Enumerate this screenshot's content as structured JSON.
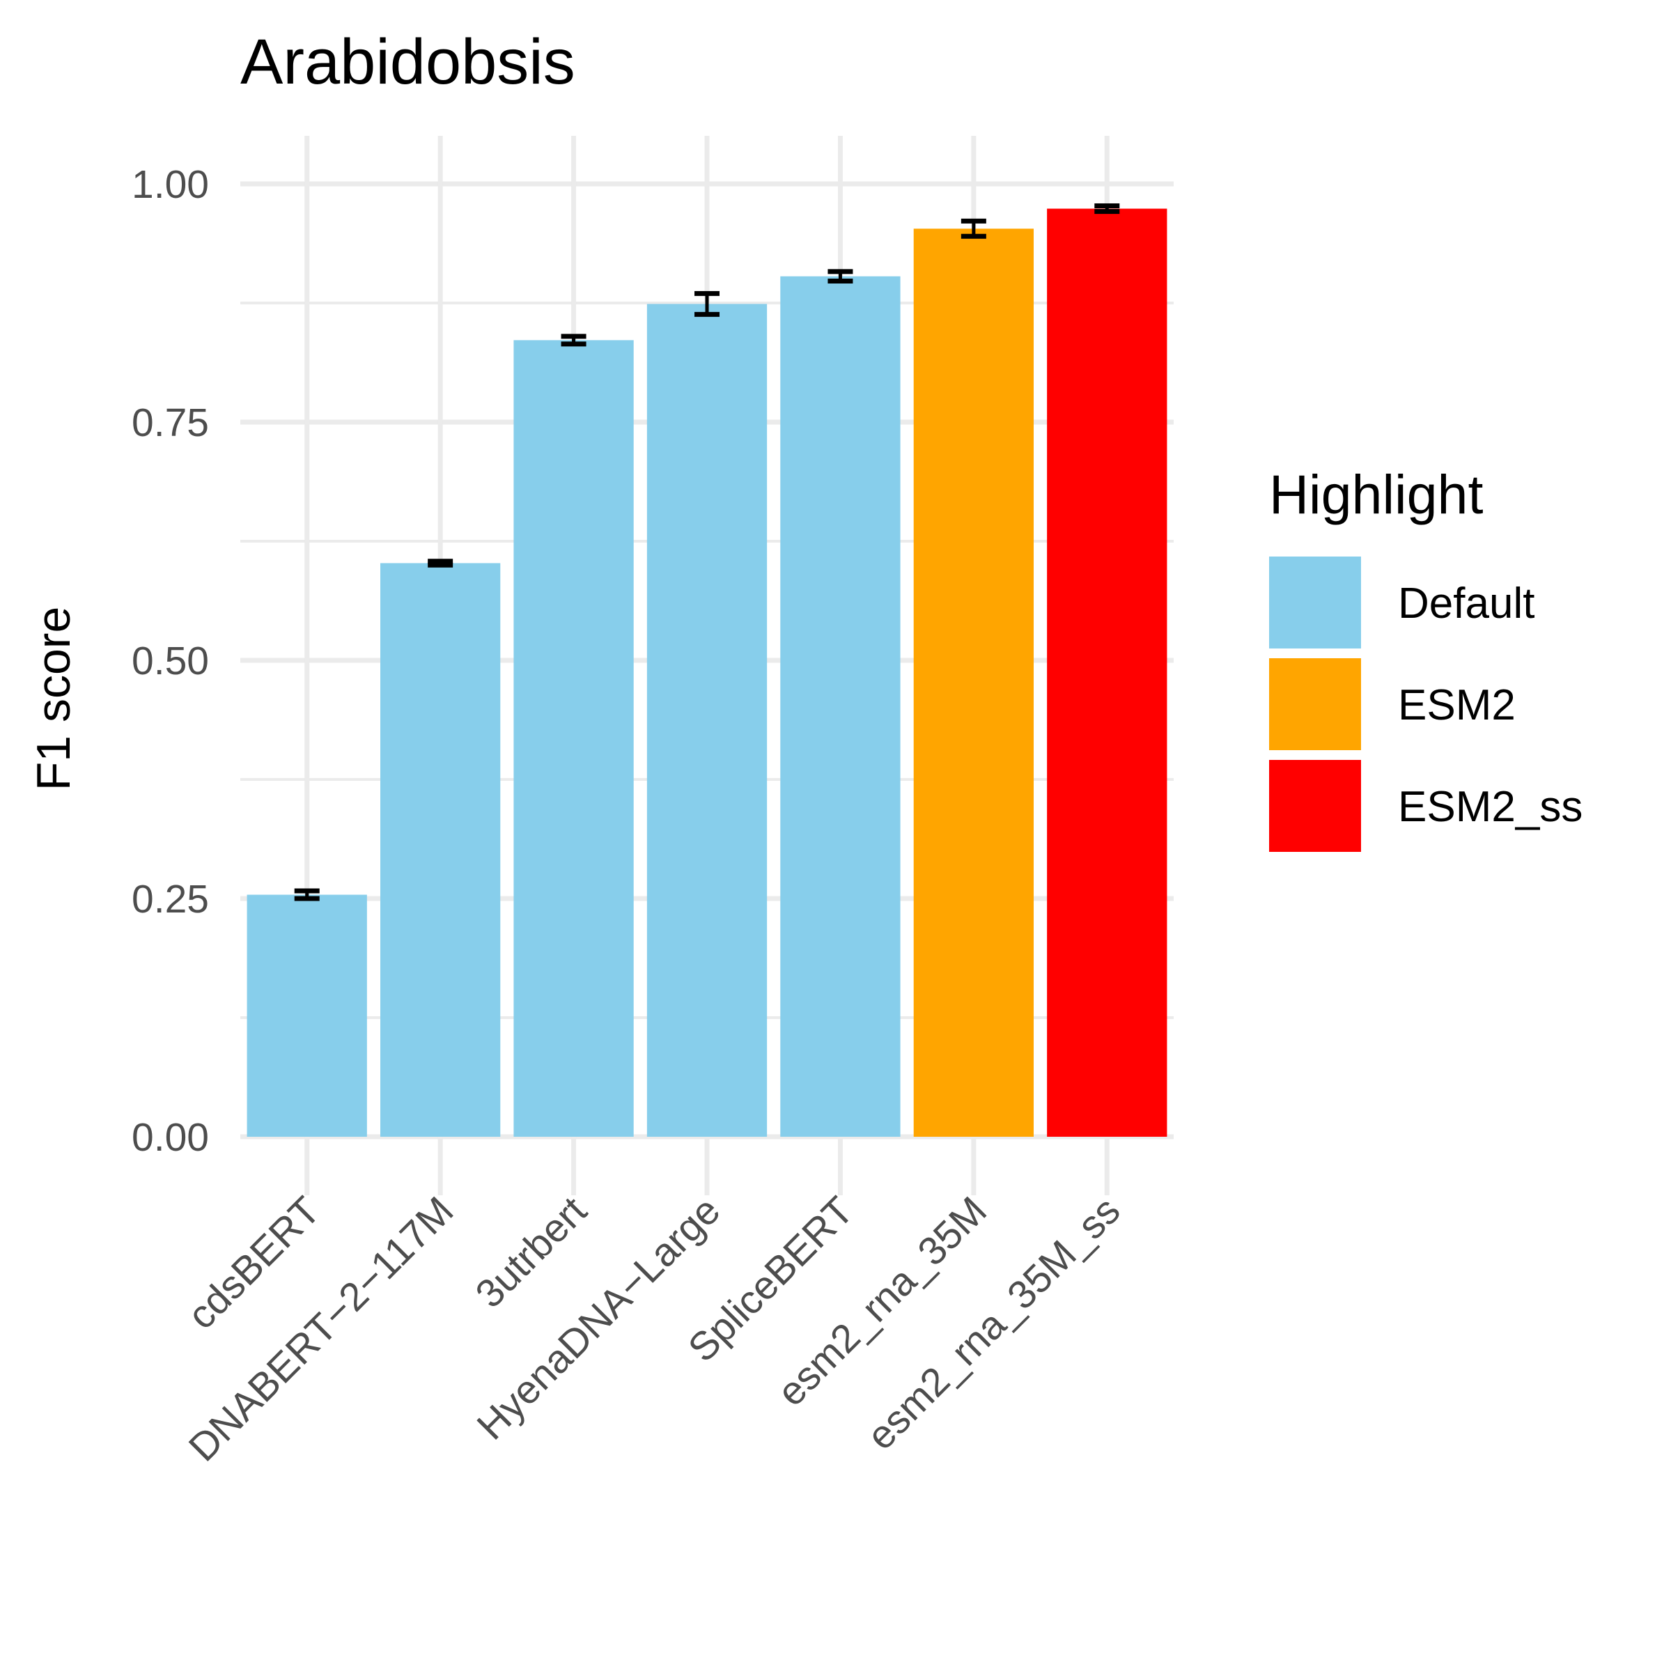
{
  "chart_data": {
    "type": "bar",
    "title": "Arabidobsis",
    "xlabel": "",
    "ylabel": "F1 score",
    "ylim": [
      0,
      1.05
    ],
    "yticks": [
      "0.00",
      "0.25",
      "0.50",
      "0.75",
      "1.00"
    ],
    "grid": true,
    "categories": [
      "cdsBERT",
      "DNABERT−2−117M",
      "3utrbert",
      "HyenaDNA−Large",
      "SpliceBERT",
      "esm2_rna_35M",
      "esm2_rna_35M_ss"
    ],
    "values": [
      0.254,
      0.602,
      0.836,
      0.874,
      0.903,
      0.953,
      0.974
    ],
    "errors": [
      0.004,
      0.002,
      0.004,
      0.011,
      0.005,
      0.008,
      0.003
    ],
    "highlight": [
      "Default",
      "Default",
      "Default",
      "Default",
      "Default",
      "ESM2",
      "ESM2_ss"
    ],
    "legend": {
      "title": "Highlight",
      "position": "right",
      "items": [
        {
          "label": "Default",
          "color": "#87CEEB"
        },
        {
          "label": "ESM2",
          "color": "#FFA500"
        },
        {
          "label": "ESM2_ss",
          "color": "#FF0000"
        }
      ]
    }
  }
}
